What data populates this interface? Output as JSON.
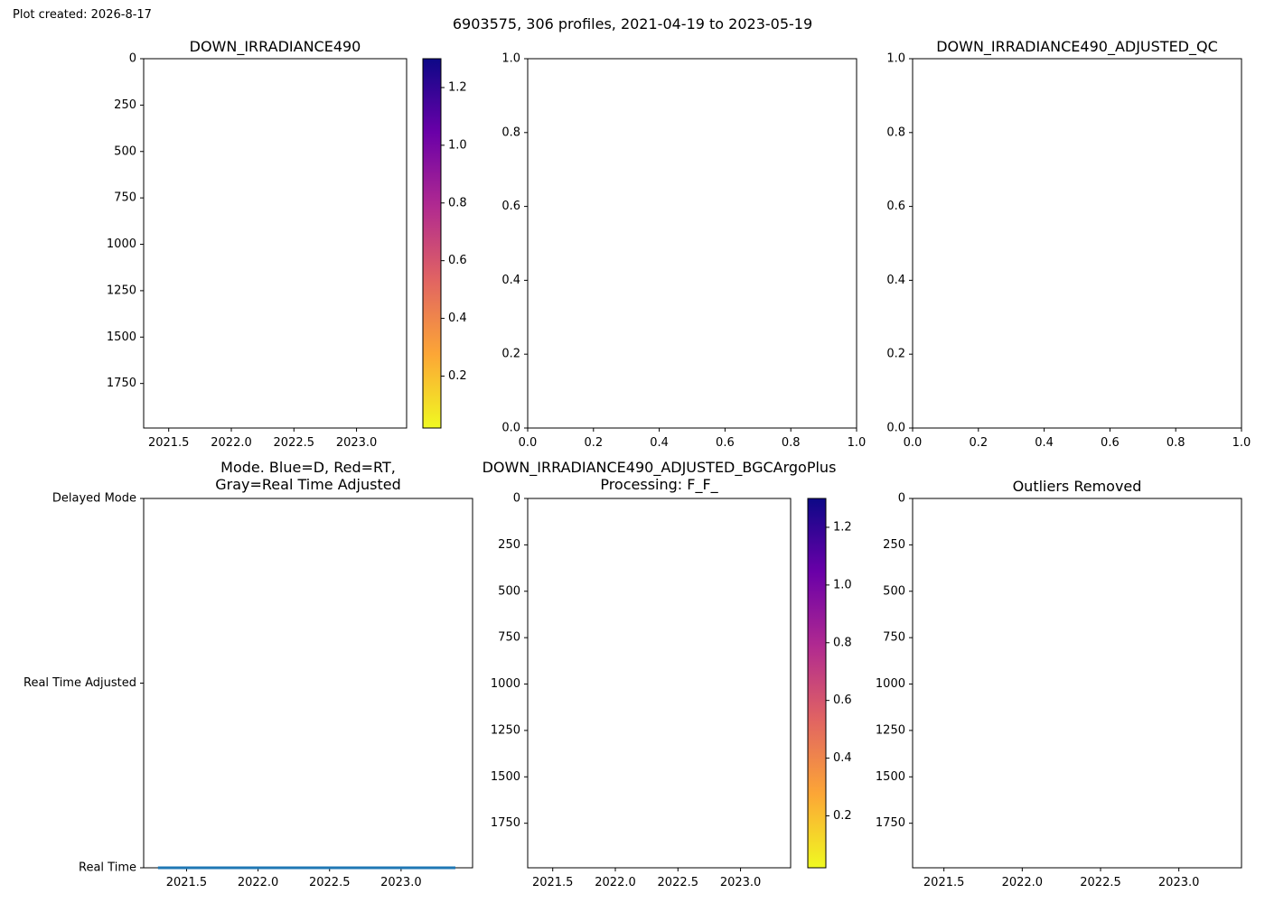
{
  "figure": {
    "created": "Plot created: 2026-8-17",
    "suptitle": "6903575, 306 profiles, 2021-04-19 to 2023-05-19"
  },
  "colormap": [
    "#0d0887",
    "#6a00a8",
    "#b12a90",
    "#e16462",
    "#fca636",
    "#f0f921"
  ],
  "chart_data": [
    {
      "id": "p1",
      "type": "heatmap",
      "title": "DOWN_IRRADIANCE490",
      "xlim": [
        2021.3,
        2023.4
      ],
      "ylim": [
        1990,
        0
      ],
      "x_ticks": [
        2021.5,
        2022.0,
        2022.5,
        2023.0
      ],
      "x_tick_labels": [
        "2021.5",
        "2022.0",
        "2022.5",
        "2023.0"
      ],
      "y_ticks": [
        0,
        250,
        500,
        750,
        1000,
        1250,
        1500,
        1750
      ],
      "y_tick_labels": [
        "0",
        "250",
        "500",
        "750",
        "1000",
        "1250",
        "1500",
        "1750"
      ],
      "colorbar": {
        "cmap": "plasma_r",
        "range": [
          0.02,
          1.3
        ],
        "ticks": [
          0.2,
          0.4,
          0.6,
          0.8,
          1.0,
          1.2
        ],
        "tick_labels": [
          "0.2",
          "0.4",
          "0.6",
          "0.8",
          "1.0",
          "1.2"
        ]
      },
      "values": []
    },
    {
      "id": "p2",
      "type": "scatter",
      "title": "",
      "xlim": [
        0,
        1
      ],
      "ylim": [
        0,
        1
      ],
      "x_ticks": [
        0,
        0.2,
        0.4,
        0.6,
        0.8,
        1.0
      ],
      "x_tick_labels": [
        "0.0",
        "0.2",
        "0.4",
        "0.6",
        "0.8",
        "1.0"
      ],
      "y_ticks": [
        0,
        0.2,
        0.4,
        0.6,
        0.8,
        1.0
      ],
      "y_tick_labels": [
        "0.0",
        "0.2",
        "0.4",
        "0.6",
        "0.8",
        "1.0"
      ],
      "values": []
    },
    {
      "id": "p3",
      "type": "scatter",
      "title": "DOWN_IRRADIANCE490_ADJUSTED_QC",
      "xlim": [
        0,
        1
      ],
      "ylim": [
        0,
        1
      ],
      "x_ticks": [
        0,
        0.2,
        0.4,
        0.6,
        0.8,
        1.0
      ],
      "x_tick_labels": [
        "0.0",
        "0.2",
        "0.4",
        "0.6",
        "0.8",
        "1.0"
      ],
      "y_ticks": [
        0,
        0.2,
        0.4,
        0.6,
        0.8,
        1.0
      ],
      "y_tick_labels": [
        "0.0",
        "0.2",
        "0.4",
        "0.6",
        "0.8",
        "1.0"
      ],
      "values": []
    },
    {
      "id": "p4",
      "type": "line",
      "title": [
        "Mode. Blue=D, Red=RT,",
        "Gray=Real Time Adjusted"
      ],
      "xlim": [
        2021.2,
        2023.5
      ],
      "ylim": [
        0,
        2
      ],
      "x_ticks": [
        2021.5,
        2022.0,
        2022.5,
        2023.0
      ],
      "x_tick_labels": [
        "2021.5",
        "2022.0",
        "2022.5",
        "2023.0"
      ],
      "y_ticks": [
        2,
        1,
        0
      ],
      "y_tick_labels": [
        "Delayed Mode",
        "Real Time Adjusted",
        "Real Time"
      ],
      "series": [
        {
          "name": "",
          "color": "#1f77b4",
          "x": [
            2021.3,
            2023.38
          ],
          "y": [
            0,
            0
          ]
        }
      ]
    },
    {
      "id": "p5",
      "type": "heatmap",
      "title": [
        "DOWN_IRRADIANCE490_ADJUSTED_BGCArgoPlus",
        "Processing: F_F_"
      ],
      "xlim": [
        2021.3,
        2023.4
      ],
      "ylim": [
        1990,
        0
      ],
      "x_ticks": [
        2021.5,
        2022.0,
        2022.5,
        2023.0
      ],
      "x_tick_labels": [
        "2021.5",
        "2022.0",
        "2022.5",
        "2023.0"
      ],
      "y_ticks": [
        0,
        250,
        500,
        750,
        1000,
        1250,
        1500,
        1750
      ],
      "y_tick_labels": [
        "0",
        "250",
        "500",
        "750",
        "1000",
        "1250",
        "1500",
        "1750"
      ],
      "colorbar": {
        "cmap": "plasma_r",
        "range": [
          0.02,
          1.3
        ],
        "ticks": [
          0.2,
          0.4,
          0.6,
          0.8,
          1.0,
          1.2
        ],
        "tick_labels": [
          "0.2",
          "0.4",
          "0.6",
          "0.8",
          "1.0",
          "1.2"
        ]
      },
      "values": []
    },
    {
      "id": "p6",
      "type": "heatmap",
      "title": "Outliers Removed",
      "xlim": [
        2021.3,
        2023.4
      ],
      "ylim": [
        1990,
        0
      ],
      "x_ticks": [
        2021.5,
        2022.0,
        2022.5,
        2023.0
      ],
      "x_tick_labels": [
        "2021.5",
        "2022.0",
        "2022.5",
        "2023.0"
      ],
      "y_ticks": [
        0,
        250,
        500,
        750,
        1000,
        1250,
        1500,
        1750
      ],
      "y_tick_labels": [
        "0",
        "250",
        "500",
        "750",
        "1000",
        "1250",
        "1500",
        "1750"
      ],
      "values": []
    }
  ]
}
